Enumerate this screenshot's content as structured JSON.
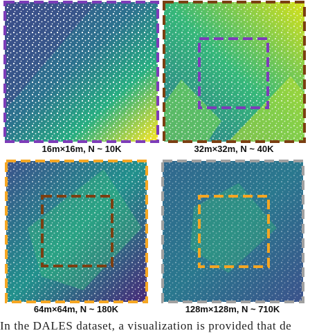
{
  "figure": {
    "panels": [
      {
        "caption": "16m×16m, N ~ 10K"
      },
      {
        "caption": "32m×32m, N ~ 40K"
      },
      {
        "caption": "64m×64m, N ~ 180K"
      },
      {
        "caption": "128m×128m, N ~ 710K"
      }
    ]
  },
  "body": {
    "text": "In the DALES dataset, a visualization is provided that de"
  }
}
